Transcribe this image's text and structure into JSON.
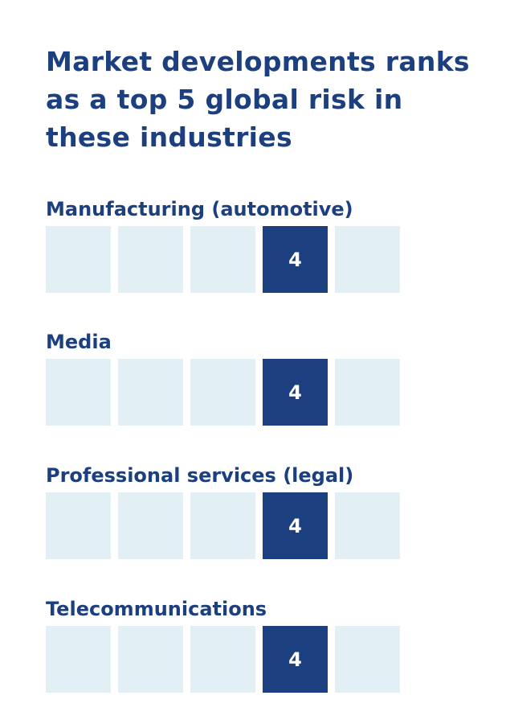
{
  "title": "Market developments ranks as a top 5 global risk in these industries",
  "colors": {
    "accent": "#1b3f7f",
    "empty_box": "#e2f0f6",
    "rank_text": "#ffffff"
  },
  "chart_data": {
    "type": "table",
    "title": "Market developments ranks as a top 5 global risk in these industries",
    "positions": [
      1,
      2,
      3,
      4,
      5
    ],
    "industries": [
      {
        "name": "Manufacturing (automotive)",
        "rank": 4,
        "rank_label": "4"
      },
      {
        "name": "Media",
        "rank": 4,
        "rank_label": "4"
      },
      {
        "name": "Professional services (legal)",
        "rank": 4,
        "rank_label": "4"
      },
      {
        "name": "Telecommunications",
        "rank": 4,
        "rank_label": "4"
      }
    ]
  }
}
